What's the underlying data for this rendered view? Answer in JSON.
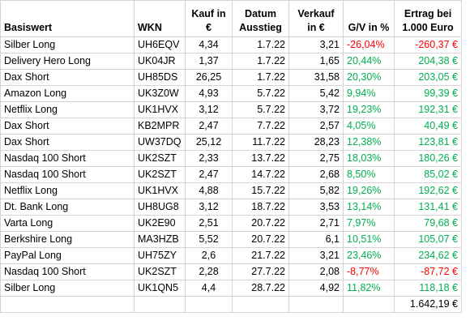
{
  "headers": {
    "name": "Basiswert",
    "wkn": "WKN",
    "buy": [
      "Kauf in",
      "€"
    ],
    "date": [
      "Datum",
      "Ausstieg"
    ],
    "sell": [
      "Verkauf",
      "in €"
    ],
    "gv": "G/V in %",
    "ret": [
      "Ertrag bei",
      "1.000 Euro"
    ]
  },
  "rows": [
    {
      "name": "Silber Long",
      "wkn": "UH6EQV",
      "buy": "4,34",
      "date": "1.7.22",
      "sell": "3,21",
      "gv": "-26,04%",
      "ret": "-260,37 €",
      "trend": "neg"
    },
    {
      "name": "Delivery Hero Long",
      "wkn": "UK04JR",
      "buy": "1,37",
      "date": "1.7.22",
      "sell": "1,65",
      "gv": "20,44%",
      "ret": "204,38 €",
      "trend": "pos"
    },
    {
      "name": "Dax Short",
      "wkn": "UH85DS",
      "buy": "26,25",
      "date": "1.7.22",
      "sell": "31,58",
      "gv": "20,30%",
      "ret": "203,05 €",
      "trend": "pos"
    },
    {
      "name": "Amazon Long",
      "wkn": "UK3Z0W",
      "buy": "4,93",
      "date": "5.7.22",
      "sell": "5,42",
      "gv": "9,94%",
      "ret": "99,39 €",
      "trend": "pos"
    },
    {
      "name": "Netflix Long",
      "wkn": "UK1HVX",
      "buy": "3,12",
      "date": "5.7.22",
      "sell": "3,72",
      "gv": "19,23%",
      "ret": "192,31 €",
      "trend": "pos"
    },
    {
      "name": "Dax Short",
      "wkn": "KB2MPR",
      "buy": "2,47",
      "date": "7.7.22",
      "sell": "2,57",
      "gv": "4,05%",
      "ret": "40,49 €",
      "trend": "pos"
    },
    {
      "name": "Dax Short",
      "wkn": "UW37DQ",
      "buy": "25,12",
      "date": "11.7.22",
      "sell": "28,23",
      "gv": "12,38%",
      "ret": "123,81 €",
      "trend": "pos"
    },
    {
      "name": "Nasdaq 100 Short",
      "wkn": "UK2SZT",
      "buy": "2,33",
      "date": "13.7.22",
      "sell": "2,75",
      "gv": "18,03%",
      "ret": "180,26 €",
      "trend": "pos"
    },
    {
      "name": "Nasdaq 100 Short",
      "wkn": "UK2SZT",
      "buy": "2,47",
      "date": "14.7.22",
      "sell": "2,68",
      "gv": "8,50%",
      "ret": "85,02 €",
      "trend": "pos"
    },
    {
      "name": "Netflix Long",
      "wkn": "UK1HVX",
      "buy": "4,88",
      "date": "15.7.22",
      "sell": "5,82",
      "gv": "19,26%",
      "ret": "192,62 €",
      "trend": "pos"
    },
    {
      "name": "Dt. Bank Long",
      "wkn": "UH8UG8",
      "buy": "3,12",
      "date": "18.7.22",
      "sell": "3,53",
      "gv": "13,14%",
      "ret": "131,41 €",
      "trend": "pos"
    },
    {
      "name": "Varta Long",
      "wkn": "UK2E90",
      "buy": "2,51",
      "date": "20.7.22",
      "sell": "2,71",
      "gv": "7,97%",
      "ret": "79,68 €",
      "trend": "pos"
    },
    {
      "name": "Berkshire Long",
      "wkn": "MA3HZB",
      "buy": "5,52",
      "date": "20.7.22",
      "sell": "6,1",
      "gv": "10,51%",
      "ret": "105,07 €",
      "trend": "pos"
    },
    {
      "name": "PayPal Long",
      "wkn": "UH75ZY",
      "buy": "2,6",
      "date": "21.7.22",
      "sell": "3,21",
      "gv": "23,46%",
      "ret": "234,62 €",
      "trend": "pos"
    },
    {
      "name": "Nasdaq 100 Short",
      "wkn": "UK2SZT",
      "buy": "2,28",
      "date": "27.7.22",
      "sell": "2,08",
      "gv": "-8,77%",
      "ret": "-87,72 €",
      "trend": "neg"
    },
    {
      "name": "Silber Long",
      "wkn": "UK1QN5",
      "buy": "4,4",
      "date": "28.7.22",
      "sell": "4,92",
      "gv": "11,82%",
      "ret": "118,18 €",
      "trend": "pos"
    }
  ],
  "total": "1.642,19 €"
}
